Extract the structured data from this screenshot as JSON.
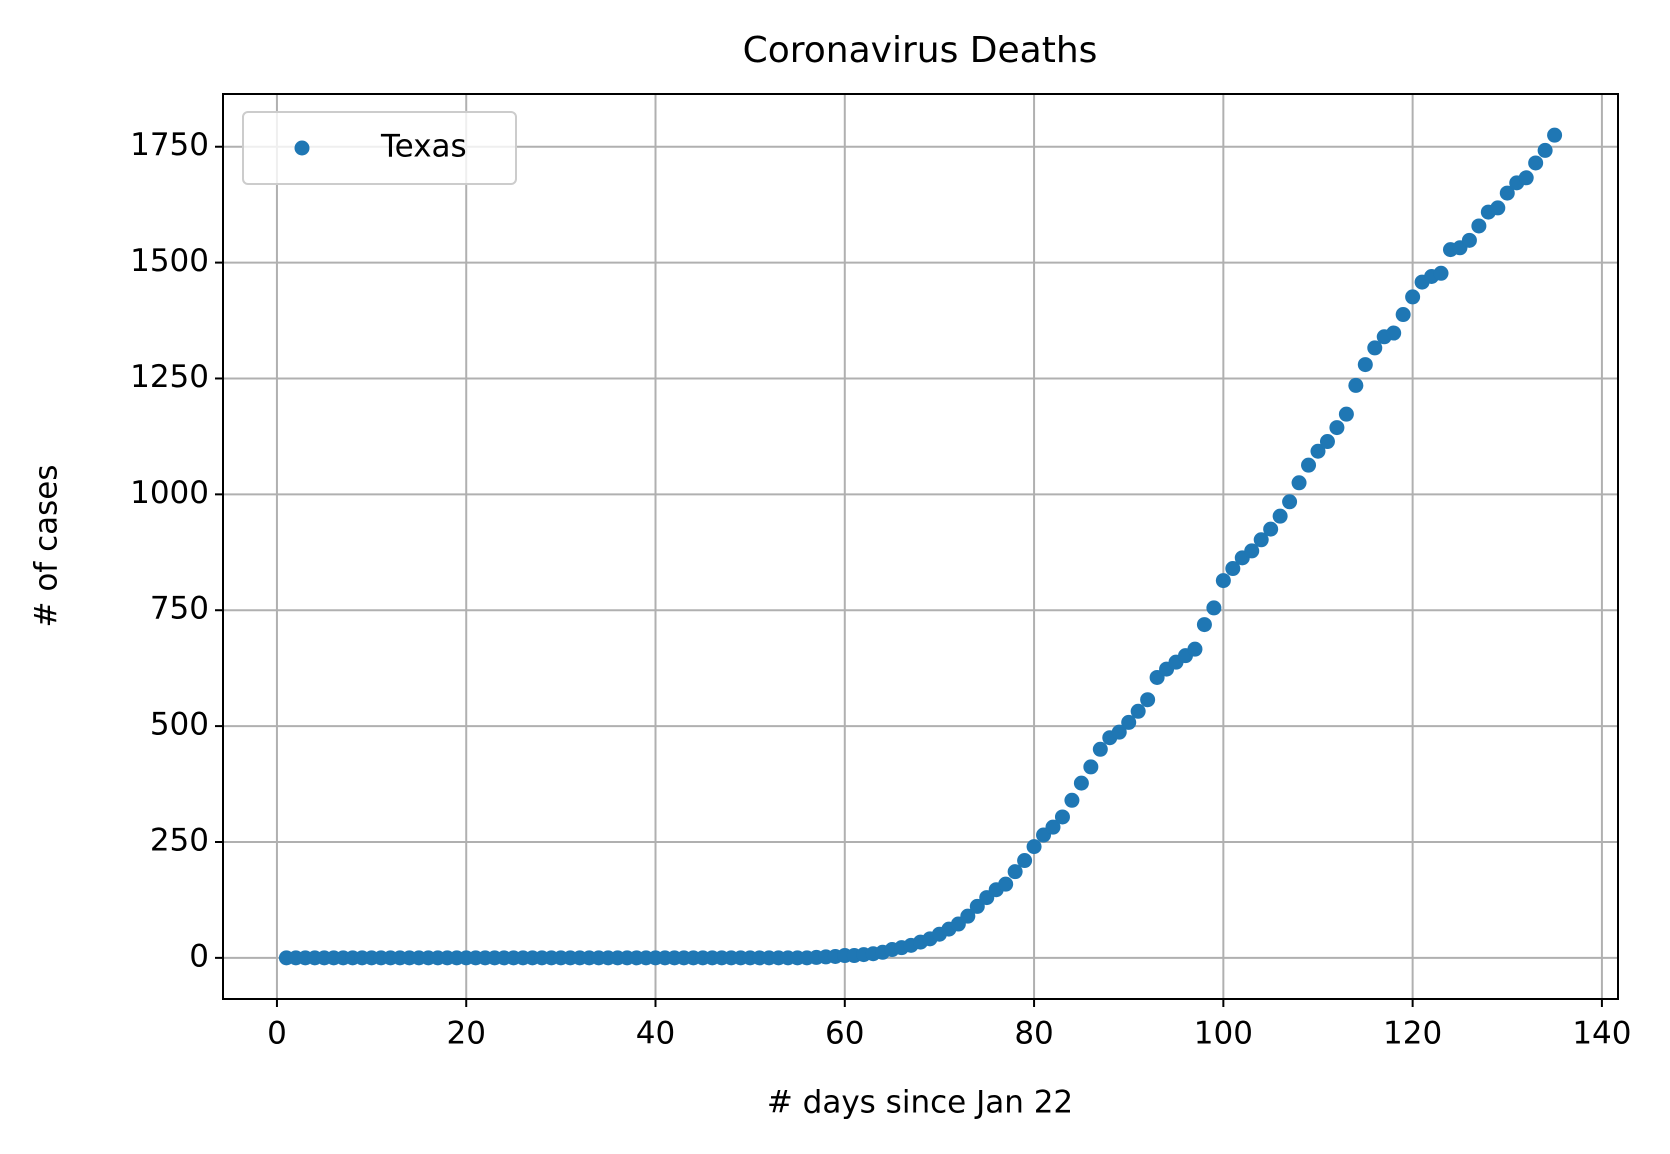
{
  "chart_data": {
    "type": "scatter",
    "title": "Coronavirus Deaths",
    "xlabel": "# days since Jan 22",
    "ylabel": "# of cases",
    "series": [
      {
        "name": "Texas",
        "color": "#1f77b4",
        "x": [
          1,
          2,
          3,
          4,
          5,
          6,
          7,
          8,
          9,
          10,
          11,
          12,
          13,
          14,
          15,
          16,
          17,
          18,
          19,
          20,
          21,
          22,
          23,
          24,
          25,
          26,
          27,
          28,
          29,
          30,
          31,
          32,
          33,
          34,
          35,
          36,
          37,
          38,
          39,
          40,
          41,
          42,
          43,
          44,
          45,
          46,
          47,
          48,
          49,
          50,
          51,
          52,
          53,
          54,
          55,
          56,
          57,
          58,
          59,
          60,
          61,
          62,
          63,
          64,
          65,
          66,
          67,
          68,
          69,
          70,
          71,
          72,
          73,
          74,
          75,
          76,
          77,
          78,
          79,
          80,
          81,
          82,
          83,
          84,
          85,
          86,
          87,
          88,
          89,
          90,
          91,
          92,
          93,
          94,
          95,
          96,
          97,
          98,
          99,
          100,
          101,
          102,
          103,
          104,
          105,
          106,
          107,
          108,
          109,
          110,
          111,
          112,
          113,
          114,
          115,
          116,
          117,
          118,
          119,
          120,
          121,
          122,
          123,
          124,
          125,
          126,
          127,
          128,
          129,
          130,
          131,
          132,
          133,
          134,
          135
        ],
        "values": [
          0,
          0,
          0,
          0,
          0,
          0,
          0,
          0,
          0,
          0,
          0,
          0,
          0,
          0,
          0,
          0,
          0,
          0,
          0,
          0,
          0,
          0,
          0,
          0,
          0,
          0,
          0,
          0,
          0,
          0,
          0,
          0,
          0,
          0,
          0,
          0,
          0,
          0,
          0,
          0,
          0,
          0,
          0,
          0,
          0,
          0,
          0,
          0,
          0,
          0,
          0,
          0,
          0,
          0,
          0,
          0,
          1,
          2,
          3,
          5,
          5,
          7,
          9,
          12,
          18,
          22,
          27,
          34,
          41,
          51,
          62,
          73,
          90,
          111,
          130,
          147,
          159,
          186,
          210,
          240,
          265,
          282,
          304,
          340,
          377,
          412,
          450,
          475,
          487,
          508,
          532,
          557,
          605,
          623,
          638,
          652,
          666,
          719,
          755,
          814,
          840,
          863,
          878,
          902,
          925,
          953,
          984,
          1025,
          1063,
          1093,
          1114,
          1144,
          1173,
          1235,
          1280,
          1316,
          1340,
          1348,
          1388,
          1426,
          1458,
          1470,
          1477,
          1528,
          1532,
          1548,
          1579,
          1609,
          1618,
          1650,
          1672,
          1683,
          1715,
          1742,
          1775
        ]
      }
    ],
    "xlim": [
      -5.7,
      141.7
    ],
    "ylim": [
      -88.75,
      1863.75
    ],
    "xticks": [
      0,
      20,
      40,
      60,
      80,
      100,
      120,
      140
    ],
    "yticks": [
      0,
      250,
      500,
      750,
      1000,
      1250,
      1500,
      1750
    ],
    "grid": true,
    "legend": "upper left"
  }
}
